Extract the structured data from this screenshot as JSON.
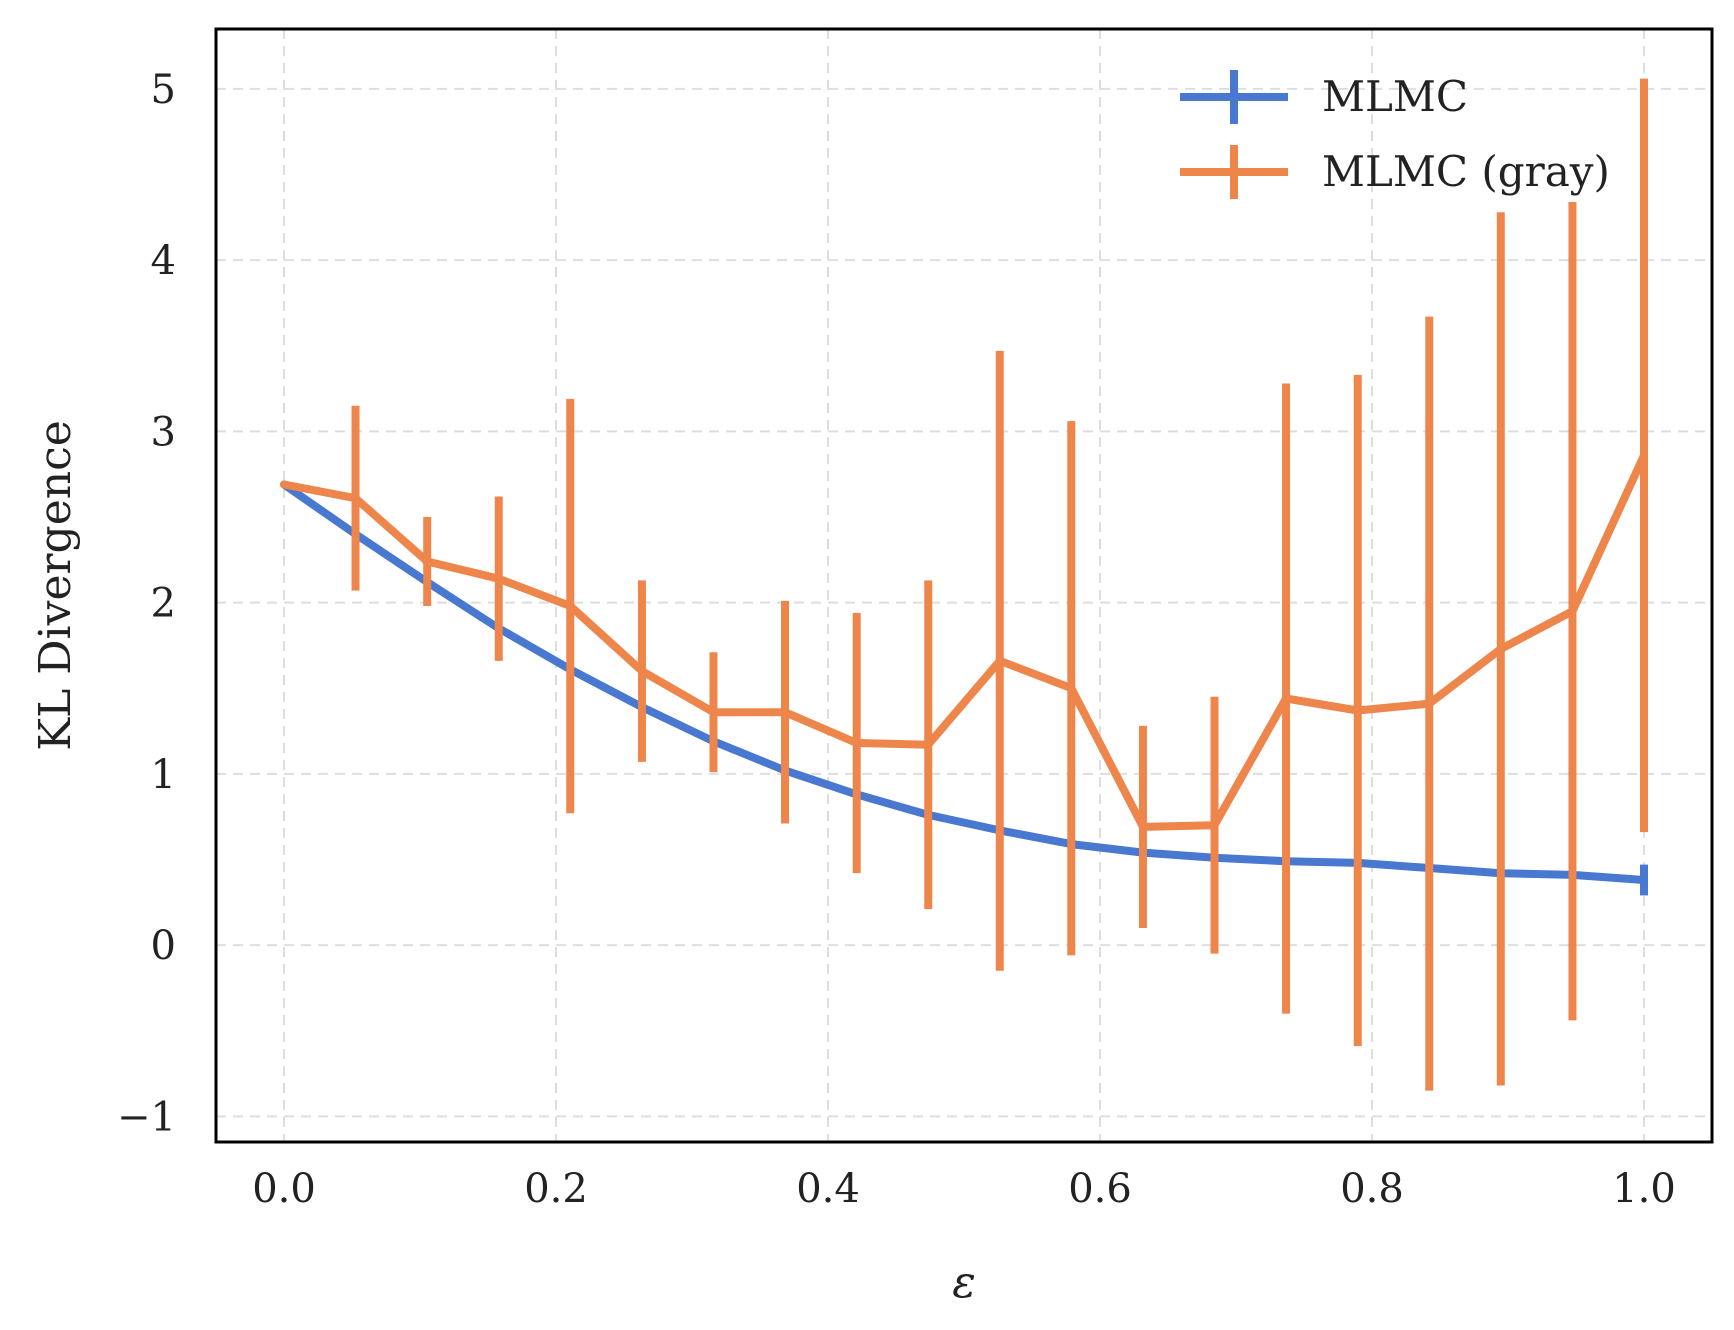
{
  "chart_data": {
    "type": "line",
    "xlabel": "ε",
    "ylabel": "KL Divergence",
    "xlim": [
      -0.05,
      1.05
    ],
    "ylim": [
      -1.15,
      5.35
    ],
    "xticks": [
      0.0,
      0.2,
      0.4,
      0.6,
      0.8,
      1.0
    ],
    "xtick_labels": [
      "0.0",
      "0.2",
      "0.4",
      "0.6",
      "0.8",
      "1.0"
    ],
    "yticks": [
      -1,
      0,
      1,
      2,
      3,
      4,
      5
    ],
    "ytick_labels": [
      "−1",
      "0",
      "1",
      "2",
      "3",
      "4",
      "5"
    ],
    "grid": true,
    "legend_position": "top-right",
    "x": [
      0.0,
      0.0526,
      0.1053,
      0.1579,
      0.2105,
      0.2632,
      0.3158,
      0.3684,
      0.4211,
      0.4737,
      0.5263,
      0.5789,
      0.6316,
      0.6842,
      0.7368,
      0.7895,
      0.8421,
      0.8947,
      0.9474,
      1.0
    ],
    "series": [
      {
        "name": "MLMC",
        "color": "#4878d0",
        "values": [
          2.69,
          2.4,
          2.12,
          1.85,
          1.61,
          1.39,
          1.19,
          1.02,
          0.88,
          0.76,
          0.67,
          0.59,
          0.54,
          0.51,
          0.49,
          0.48,
          0.45,
          0.42,
          0.41,
          0.38
        ],
        "errors": [
          0,
          0,
          0,
          0,
          0,
          0,
          0,
          0,
          0,
          0,
          0,
          0,
          0,
          0,
          0,
          0,
          0,
          0,
          0,
          0.09
        ]
      },
      {
        "name": "MLMC (gray)",
        "color": "#ee854a",
        "values": [
          2.69,
          2.61,
          2.24,
          2.14,
          1.98,
          1.6,
          1.36,
          1.36,
          1.18,
          1.17,
          1.66,
          1.5,
          0.69,
          0.7,
          1.44,
          1.37,
          1.41,
          1.73,
          1.95,
          2.86
        ],
        "errors": [
          0,
          0.54,
          0.26,
          0.48,
          1.21,
          0.53,
          0.35,
          0.65,
          0.76,
          0.96,
          1.81,
          1.56,
          0.59,
          0.75,
          1.84,
          1.96,
          2.26,
          2.55,
          2.39,
          2.2
        ]
      }
    ]
  }
}
